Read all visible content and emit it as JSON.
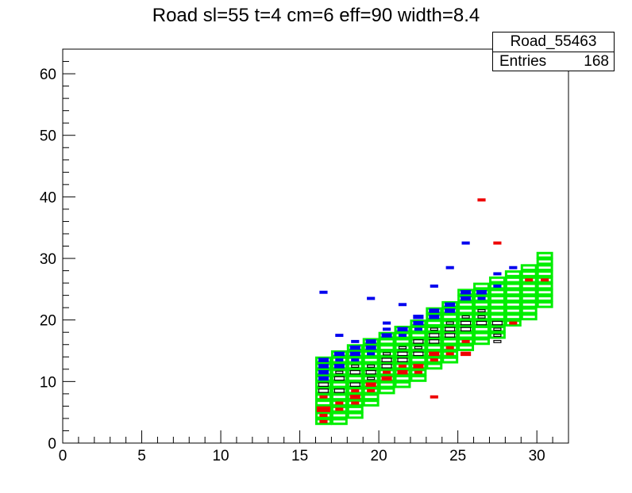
{
  "chart_data": {
    "type": "heatmap",
    "title": "Road sl=55 t=4 cm=6 eff=90 width=8.4",
    "xlim": [
      0,
      32
    ],
    "ylim": [
      0,
      64
    ],
    "x_ticks": [
      "0",
      "5",
      "10",
      "15",
      "20",
      "25",
      "30"
    ],
    "y_ticks": [
      "0",
      "10",
      "20",
      "30",
      "40",
      "50",
      "60"
    ],
    "grid": false,
    "series": [
      {
        "role": "road window (green boxes)",
        "color": "#00ee00",
        "cells": [
          {
            "x": 16,
            "y0": 3,
            "y1": 14
          },
          {
            "x": 17,
            "y0": 3,
            "y1": 15
          },
          {
            "x": 18,
            "y0": 4,
            "y1": 16
          },
          {
            "x": 19,
            "y0": 6,
            "y1": 17
          },
          {
            "x": 20,
            "y0": 8,
            "y1": 18
          },
          {
            "x": 21,
            "y0": 9,
            "y1": 19
          },
          {
            "x": 22,
            "y0": 10,
            "y1": 20
          },
          {
            "x": 23,
            "y0": 12,
            "y1": 22
          },
          {
            "x": 24,
            "y0": 13,
            "y1": 23
          },
          {
            "x": 25,
            "y0": 15,
            "y1": 25
          },
          {
            "x": 26,
            "y0": 16,
            "y1": 26
          },
          {
            "x": 27,
            "y0": 17,
            "y1": 27
          },
          {
            "x": 28,
            "y0": 19,
            "y1": 28
          },
          {
            "x": 29,
            "y0": 20,
            "y1": 29
          },
          {
            "x": 30,
            "y0": 22,
            "y1": 31
          }
        ]
      },
      {
        "role": "entries (black boxes)",
        "color": "#000000",
        "points": [
          [
            16.5,
            8.5,
            2
          ],
          [
            16.5,
            9.5,
            2
          ],
          [
            17.5,
            8.5,
            2
          ],
          [
            17.5,
            10.5,
            2
          ],
          [
            17.5,
            11.5,
            1
          ],
          [
            18.5,
            9.5,
            2
          ],
          [
            18.5,
            11.5,
            2
          ],
          [
            18.5,
            12.5,
            1
          ],
          [
            19.5,
            11.5,
            2
          ],
          [
            19.5,
            12.5,
            1
          ],
          [
            19.5,
            10.5,
            1
          ],
          [
            20.5,
            12.5,
            2
          ],
          [
            20.5,
            13.5,
            2
          ],
          [
            20.5,
            14.5,
            1
          ],
          [
            21.5,
            13.5,
            2
          ],
          [
            21.5,
            14.5,
            2
          ],
          [
            21.5,
            15.5,
            1
          ],
          [
            22.5,
            14.5,
            2
          ],
          [
            22.5,
            16.5,
            2
          ],
          [
            22.5,
            15.5,
            1
          ],
          [
            23.5,
            16.5,
            2
          ],
          [
            23.5,
            17.5,
            2
          ],
          [
            23.5,
            18.5,
            1
          ],
          [
            24.5,
            17.5,
            2
          ],
          [
            24.5,
            18.5,
            2
          ],
          [
            24.5,
            19.5,
            1
          ],
          [
            25.5,
            18.5,
            2
          ],
          [
            25.5,
            19.5,
            2
          ],
          [
            25.5,
            20.5,
            1
          ],
          [
            26.5,
            19.5,
            2
          ],
          [
            26.5,
            20.5,
            1
          ],
          [
            26.5,
            21.5,
            1
          ],
          [
            27.5,
            19.5,
            2
          ],
          [
            27.5,
            18.5,
            1
          ],
          [
            27.5,
            17.5,
            1
          ],
          [
            27.5,
            16.5,
            1
          ]
        ]
      },
      {
        "role": "blue entries",
        "color": "#0000ee",
        "points": [
          [
            16.5,
            13.5,
            2
          ],
          [
            16.5,
            12.5,
            2
          ],
          [
            16.5,
            11.5,
            2
          ],
          [
            16.5,
            10.5,
            2
          ],
          [
            16.5,
            24.5,
            1
          ],
          [
            17.5,
            14.5,
            2
          ],
          [
            17.5,
            13.5,
            1
          ],
          [
            17.5,
            12.5,
            2
          ],
          [
            17.5,
            17.5,
            1
          ],
          [
            18.5,
            15.5,
            2
          ],
          [
            18.5,
            14.5,
            2
          ],
          [
            18.5,
            13.5,
            1
          ],
          [
            18.5,
            16.5,
            1
          ],
          [
            19.5,
            16.5,
            2
          ],
          [
            19.5,
            15.5,
            2
          ],
          [
            19.5,
            14.5,
            1
          ],
          [
            19.5,
            23.5,
            1
          ],
          [
            20.5,
            17.5,
            2
          ],
          [
            20.5,
            18.5,
            1
          ],
          [
            20.5,
            19.5,
            1
          ],
          [
            21.5,
            18.5,
            2
          ],
          [
            21.5,
            17.5,
            1
          ],
          [
            21.5,
            22.5,
            1
          ],
          [
            22.5,
            19.5,
            2
          ],
          [
            22.5,
            20.5,
            2
          ],
          [
            22.5,
            18.5,
            1
          ],
          [
            23.5,
            20.5,
            2
          ],
          [
            23.5,
            21.5,
            2
          ],
          [
            23.5,
            25.5,
            1
          ],
          [
            24.5,
            21.5,
            2
          ],
          [
            24.5,
            22.5,
            2
          ],
          [
            24.5,
            28.5,
            1
          ],
          [
            25.5,
            23.5,
            2
          ],
          [
            25.5,
            24.5,
            2
          ],
          [
            25.5,
            32.5,
            1
          ],
          [
            26.5,
            24.5,
            2
          ],
          [
            26.5,
            23.5,
            1
          ],
          [
            27.5,
            27.5,
            1
          ],
          [
            27.5,
            25.5,
            1
          ],
          [
            28.5,
            28.5,
            1
          ]
        ]
      },
      {
        "role": "red entries",
        "color": "#ee0000",
        "points": [
          [
            16.5,
            5.5,
            3
          ],
          [
            16.5,
            4.5,
            1
          ],
          [
            16.5,
            3.5,
            1
          ],
          [
            16.5,
            7.5,
            1
          ],
          [
            17.5,
            6.5,
            1
          ],
          [
            17.5,
            5.5,
            1
          ],
          [
            18.5,
            7.5,
            2
          ],
          [
            18.5,
            8.5,
            1
          ],
          [
            18.5,
            6.5,
            1
          ],
          [
            19.5,
            9.5,
            2
          ],
          [
            19.5,
            8.5,
            1
          ],
          [
            20.5,
            10.5,
            2
          ],
          [
            20.5,
            11.5,
            1
          ],
          [
            21.5,
            11.5,
            2
          ],
          [
            21.5,
            12.5,
            1
          ],
          [
            22.5,
            12.5,
            2
          ],
          [
            22.5,
            11.5,
            1
          ],
          [
            23.5,
            13.5,
            1
          ],
          [
            23.5,
            14.5,
            2
          ],
          [
            23.5,
            7.5,
            1
          ],
          [
            24.5,
            14.5,
            1
          ],
          [
            24.5,
            15.5,
            1
          ],
          [
            25.5,
            14.5,
            2
          ],
          [
            25.5,
            16.5,
            1
          ],
          [
            26.5,
            39.5,
            1
          ],
          [
            27.5,
            32.5,
            1
          ],
          [
            28.5,
            19.5,
            1
          ],
          [
            29.5,
            26.5,
            1
          ],
          [
            30.5,
            26.5,
            1
          ]
        ]
      }
    ]
  },
  "stats": {
    "name": "Road_55463",
    "entries_label": "Entries",
    "entries_value": "168"
  }
}
